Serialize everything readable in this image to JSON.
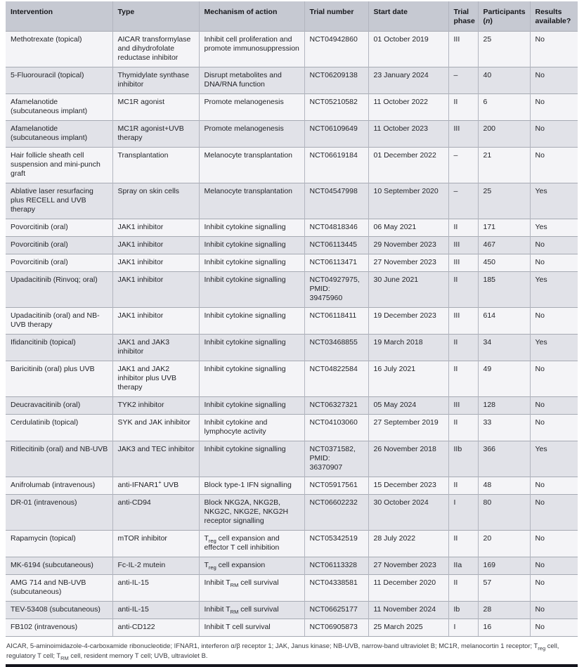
{
  "table": {
    "columns": [
      {
        "id": "intervention",
        "label_html": "Intervention"
      },
      {
        "id": "type",
        "label_html": "Type"
      },
      {
        "id": "mechanism",
        "label_html": "Mechanism of action"
      },
      {
        "id": "trial_number",
        "label_html": "Trial number"
      },
      {
        "id": "start_date",
        "label_html": "Start date"
      },
      {
        "id": "phase",
        "label_html": "Trial phase"
      },
      {
        "id": "participants",
        "label_html": "Participants (<i>n</i>)"
      },
      {
        "id": "results",
        "label_html": "Results available?"
      }
    ],
    "rows": [
      {
        "intervention": "Methotrexate (topical)",
        "type_html": "AICAR transformylase and dihydrofolate reductase inhibitor",
        "mechanism_html": "Inhibit cell proliferation and promote immunosuppression",
        "trial_number": "NCT04942860",
        "start_date": "01 October 2019",
        "phase": "III",
        "participants": 25,
        "results": "No"
      },
      {
        "intervention": "5-Fluorouracil (topical)",
        "type_html": "Thymidylate synthase inhibitor",
        "mechanism_html": "Disrupt metabolites and DNA/RNA function",
        "trial_number": "NCT06209138",
        "start_date": "23 January 2024",
        "phase": "–",
        "participants": 40,
        "results": "No"
      },
      {
        "intervention": "Afamelanotide (subcutaneous implant)",
        "type_html": "MC1R agonist",
        "mechanism_html": "Promote melanogenesis",
        "trial_number": "NCT05210582",
        "start_date": "11 October 2022",
        "phase": "II",
        "participants": 6,
        "results": "No"
      },
      {
        "intervention": "Afamelanotide (subcutaneous implant)",
        "type_html": "MC1R agonist+UVB therapy",
        "mechanism_html": "Promote melanogenesis",
        "trial_number": "NCT06109649",
        "start_date": "11 October 2023",
        "phase": "III",
        "participants": 200,
        "results": "No"
      },
      {
        "intervention": "Hair follicle sheath cell suspension and mini-punch graft",
        "type_html": "Transplantation",
        "mechanism_html": "Melanocyte transplantation",
        "trial_number": "NCT06619184",
        "start_date": "01 December 2022",
        "phase": "–",
        "participants": 21,
        "results": "No"
      },
      {
        "intervention": "Ablative laser resurfacing plus RECELL and UVB therapy",
        "type_html": "Spray on skin cells",
        "mechanism_html": "Melanocyte transplantation",
        "trial_number": "NCT04547998",
        "start_date": "10 September 2020",
        "phase": "–",
        "participants": 25,
        "results": "Yes"
      },
      {
        "intervention": "Povorcitinib (oral)",
        "type_html": "JAK1 inhibitor",
        "mechanism_html": "Inhibit cytokine signalling",
        "trial_number": "NCT04818346",
        "start_date": "06 May 2021",
        "phase": "II",
        "participants": 171,
        "results": "Yes"
      },
      {
        "intervention": "Povorcitinib (oral)",
        "type_html": "JAK1 inhibitor",
        "mechanism_html": "Inhibit cytokine signalling",
        "trial_number": "NCT06113445",
        "start_date": "29 November 2023",
        "phase": "III",
        "participants": 467,
        "results": "No"
      },
      {
        "intervention": "Povorcitinib (oral)",
        "type_html": "JAK1 inhibitor",
        "mechanism_html": "Inhibit cytokine signalling",
        "trial_number": "NCT06113471",
        "start_date": "27 November 2023",
        "phase": "III",
        "participants": 450,
        "results": "No"
      },
      {
        "intervention": "Upadacitinib (Rinvoq; oral)",
        "type_html": "JAK1 inhibitor",
        "mechanism_html": "Inhibit cytokine signalling",
        "trial_number": "NCT04927975, PMID: 39475960",
        "start_date": "30 June 2021",
        "phase": "II",
        "participants": 185,
        "results": "Yes"
      },
      {
        "intervention": "Upadacitinib (oral) and NB-UVB therapy",
        "type_html": "JAK1 inhibitor",
        "mechanism_html": "Inhibit cytokine signalling",
        "trial_number": "NCT06118411",
        "start_date": "19 December 2023",
        "phase": "III",
        "participants": 614,
        "results": "No"
      },
      {
        "intervention": "Ifidancitinib (topical)",
        "type_html": "JAK1 and JAK3 inhibitor",
        "mechanism_html": "Inhibit cytokine signalling",
        "trial_number": "NCT03468855",
        "start_date": "19 March 2018",
        "phase": "II",
        "participants": 34,
        "results": "Yes"
      },
      {
        "intervention": "Baricitinib (oral) plus UVB",
        "type_html": "JAK1 and JAK2 inhibitor plus UVB therapy",
        "mechanism_html": "Inhibit cytokine signalling",
        "trial_number": "NCT04822584",
        "start_date": "16 July 2021",
        "phase": "II",
        "participants": 49,
        "results": "No"
      },
      {
        "intervention": "Deucravacitinib (oral)",
        "type_html": "TYK2 inhibitor",
        "mechanism_html": "Inhibit cytokine signalling",
        "trial_number": "NCT06327321",
        "start_date": "05 May 2024",
        "phase": "III",
        "participants": 128,
        "results": "No"
      },
      {
        "intervention": "Cerdulatinib (topical)",
        "type_html": "SYK and JAK inhibitor",
        "mechanism_html": "Inhibit cytokine and lymphocyte activity",
        "trial_number": "NCT04103060",
        "start_date": "27 September 2019",
        "phase": "II",
        "participants": 33,
        "results": "No"
      },
      {
        "intervention": "Ritlecitinib (oral) and NB-UVB",
        "type_html": "JAK3 and TEC inhibitor",
        "mechanism_html": "Inhibit cytokine signalling",
        "trial_number": "NCT0371582, PMID: 36370907",
        "start_date": "26 November 2018",
        "phase": "IIb",
        "participants": 366,
        "results": "Yes"
      },
      {
        "intervention": "Anifrolumab (intravenous)",
        "type_html": "anti-IFNAR1<sup>+</sup> UVB",
        "mechanism_html": "Block type-1 IFN signalling",
        "trial_number": "NCT05917561",
        "start_date": "15 December 2023",
        "phase": "II",
        "participants": 48,
        "results": "No"
      },
      {
        "intervention": "DR-01 (intravenous)",
        "type_html": "anti-CD94",
        "mechanism_html": "Block NKG2A, NKG2B, NKG2C, NKG2E, NKG2H receptor signalling",
        "trial_number": "NCT06602232",
        "start_date": "30 October 2024",
        "phase": "I",
        "participants": 80,
        "results": "No"
      },
      {
        "intervention": "Rapamycin (topical)",
        "type_html": "mTOR inhibitor",
        "mechanism_html": "T<sub>reg</sub> cell expansion and effector T cell inhibition",
        "trial_number": "NCT05342519",
        "start_date": "28 July 2022",
        "phase": "II",
        "participants": 20,
        "results": "No"
      },
      {
        "intervention": "MK-6194 (subcutaneous)",
        "type_html": "Fc-IL-2 mutein",
        "mechanism_html": "T<sub>reg</sub> cell expansion",
        "trial_number": "NCT06113328",
        "start_date": "27 November 2023",
        "phase": "IIa",
        "participants": 169,
        "results": "No"
      },
      {
        "intervention": "AMG 714 and NB-UVB (subcutaneous)",
        "type_html": "anti-IL-15",
        "mechanism_html": "Inhibit T<sub>RM</sub> cell survival",
        "trial_number": "NCT04338581",
        "start_date": "11 December 2020",
        "phase": "II",
        "participants": 57,
        "results": "No"
      },
      {
        "intervention": "TEV-53408 (subcutaneous)",
        "type_html": "anti-IL-15",
        "mechanism_html": "Inhibit T<sub>RM</sub> cell survival",
        "trial_number": "NCT06625177",
        "start_date": "11 November 2024",
        "phase": "Ib",
        "participants": 28,
        "results": "No"
      },
      {
        "intervention": "FB102 (intravenous)",
        "type_html": "anti-CD122",
        "mechanism_html": "Inhibit T cell survival",
        "trial_number": "NCT06905873",
        "start_date": "25 March 2025",
        "phase": "I",
        "participants": 16,
        "results": "No"
      }
    ],
    "footnote_html": "AICAR, 5-aminoimidazole-4-carboxamide ribonucleotide; IFNAR1, interferon α/β receptor 1; JAK, Janus kinase; NB-UVB, narrow-band ultraviolet B; MC1R, melanocortin 1 receptor; T<sub>reg</sub> cell, regulatory T cell; T<sub>RM</sub> cell, resident memory T cell; UVB, ultraviolet B.",
    "colors": {
      "header_bg": "#c6c9d2",
      "row_light_bg": "#f4f4f7",
      "row_dark_bg": "#e1e2e8",
      "row_divider": "#a6aab3",
      "column_divider": "#b2b5bf",
      "bottom_rule": "#15151d"
    }
  }
}
